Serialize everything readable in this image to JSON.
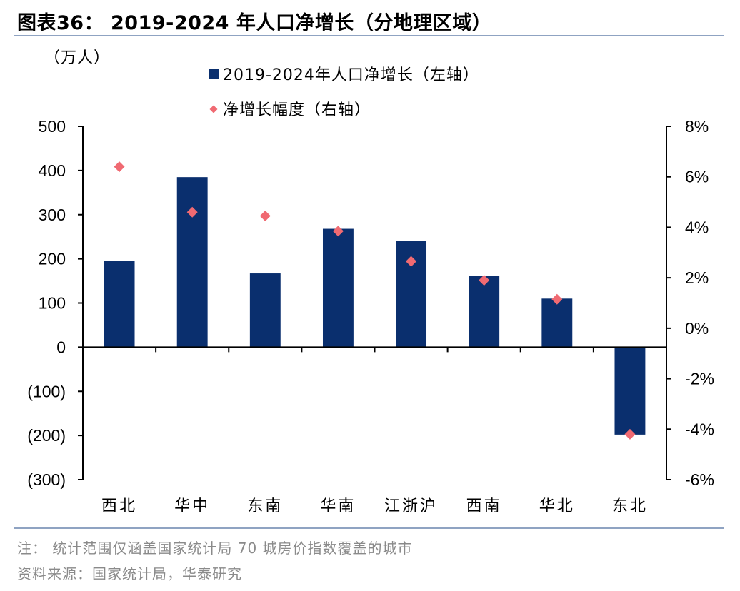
{
  "title": "图表36： 2019-2024 年人口净增长（分地理区域）",
  "notes": {
    "note": "注：  统计范围仅涵盖国家统计局 70 城房价指数覆盖的城市",
    "source": "资料来源：国家统计局，华泰研究"
  },
  "chart_data": {
    "type": "bar",
    "left_unit": "（万人）",
    "categories": [
      "西北",
      "华中",
      "东南",
      "华南",
      "江浙沪",
      "西南",
      "华北",
      "东北"
    ],
    "series": [
      {
        "name": "2019-2024年人口净增长（左轴）",
        "type": "bar",
        "axis": "left",
        "color": "#0a2f6e",
        "values": [
          195,
          385,
          167,
          268,
          240,
          162,
          110,
          -198
        ]
      },
      {
        "name": "净增长幅度（右轴）",
        "type": "scatter",
        "axis": "right",
        "color": "#f06a72",
        "values": [
          6.4,
          4.6,
          4.45,
          3.85,
          2.65,
          1.9,
          1.15,
          -4.2
        ]
      }
    ],
    "y_left": {
      "min": -300,
      "max": 500,
      "step": 100,
      "tick_labels": [
        "(300)",
        "(200)",
        "(100)",
        "0",
        "100",
        "200",
        "300",
        "400",
        "500"
      ]
    },
    "y_right": {
      "min": -6,
      "max": 8,
      "step": 2,
      "tick_labels": [
        "-6%",
        "-4%",
        "-2%",
        "0%",
        "2%",
        "4%",
        "6%",
        "8%"
      ]
    },
    "legend_position": "top-center",
    "grid": false
  }
}
